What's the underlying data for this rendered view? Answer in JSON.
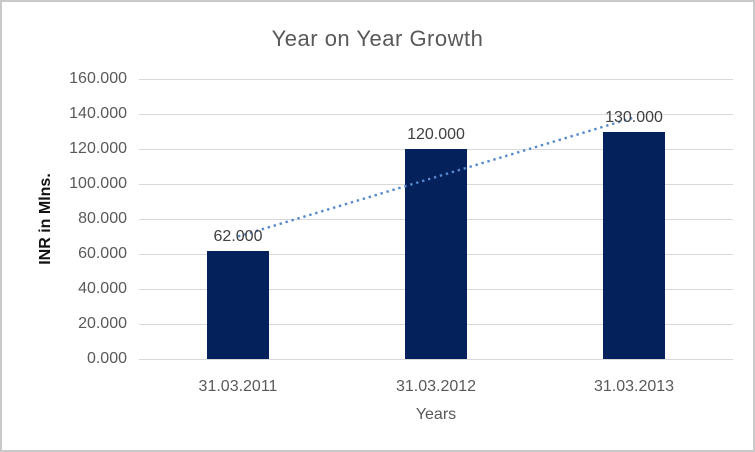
{
  "chart_data": {
    "type": "bar",
    "title": "Year on Year Growth",
    "xlabel": "Years",
    "ylabel": "INR in Mlns.",
    "categories": [
      "31.03.2011",
      "31.03.2012",
      "31.03.2013"
    ],
    "values": [
      62,
      120,
      130
    ],
    "value_labels": [
      "62.000",
      "120.000",
      "130.000"
    ],
    "ylim": [
      0,
      160
    ],
    "ytick_step": 20,
    "ytick_labels": [
      "0.000",
      "20.000",
      "40.000",
      "60.000",
      "80.000",
      "100.000",
      "120.000",
      "140.000",
      "160.000"
    ],
    "grid": true,
    "legend": "none",
    "trendline": {
      "type": "linear",
      "style": "dotted",
      "start_value": 70,
      "end_value": 138
    }
  },
  "colors": {
    "bar": "#05215c",
    "trendline": "#5589cb",
    "gridline": "#d9d9d9",
    "axis_text": "#595959",
    "data_label": "#404040",
    "title_text": "#595959",
    "border": "#c9c9c9",
    "background": "#ffffff"
  }
}
